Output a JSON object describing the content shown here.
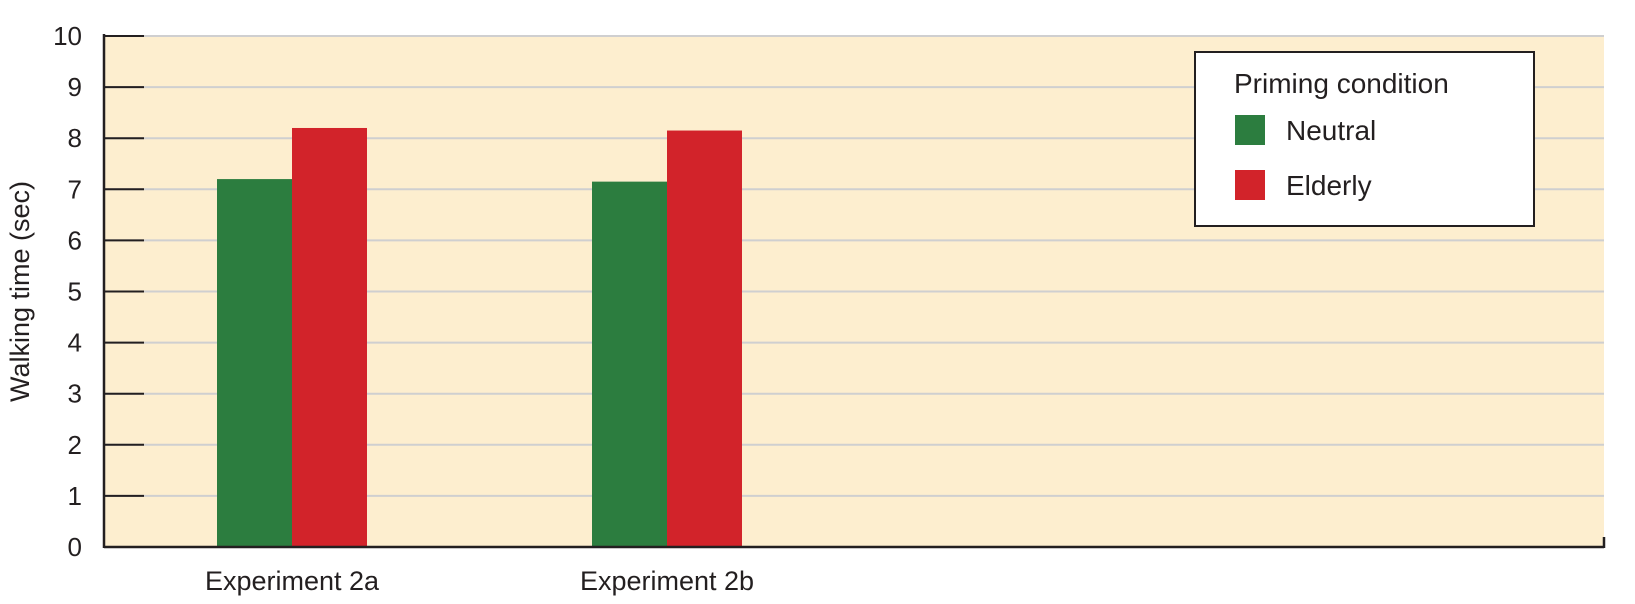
{
  "chart_data": {
    "type": "bar",
    "categories": [
      "Experiment 2a",
      "Experiment 2b"
    ],
    "series": [
      {
        "name": "Neutral",
        "values": [
          7.2,
          7.15
        ],
        "color": "#2c7d3f"
      },
      {
        "name": "Elderly",
        "values": [
          8.2,
          8.15
        ],
        "color": "#d2232a"
      }
    ],
    "xlabel": "",
    "ylabel": "Walking time (sec)",
    "ylim": [
      0,
      10
    ],
    "yticks": [
      "0",
      "1",
      "2",
      "3",
      "4",
      "5",
      "6",
      "7",
      "8",
      "9",
      "10"
    ],
    "grid": true,
    "legend": {
      "title": "Priming condition",
      "position": "top-right"
    },
    "colors": {
      "plot_background": "#fdeecf",
      "gridline": "#cfcfd0",
      "axis": "#231f20",
      "legend_background": "#ffffff"
    }
  }
}
